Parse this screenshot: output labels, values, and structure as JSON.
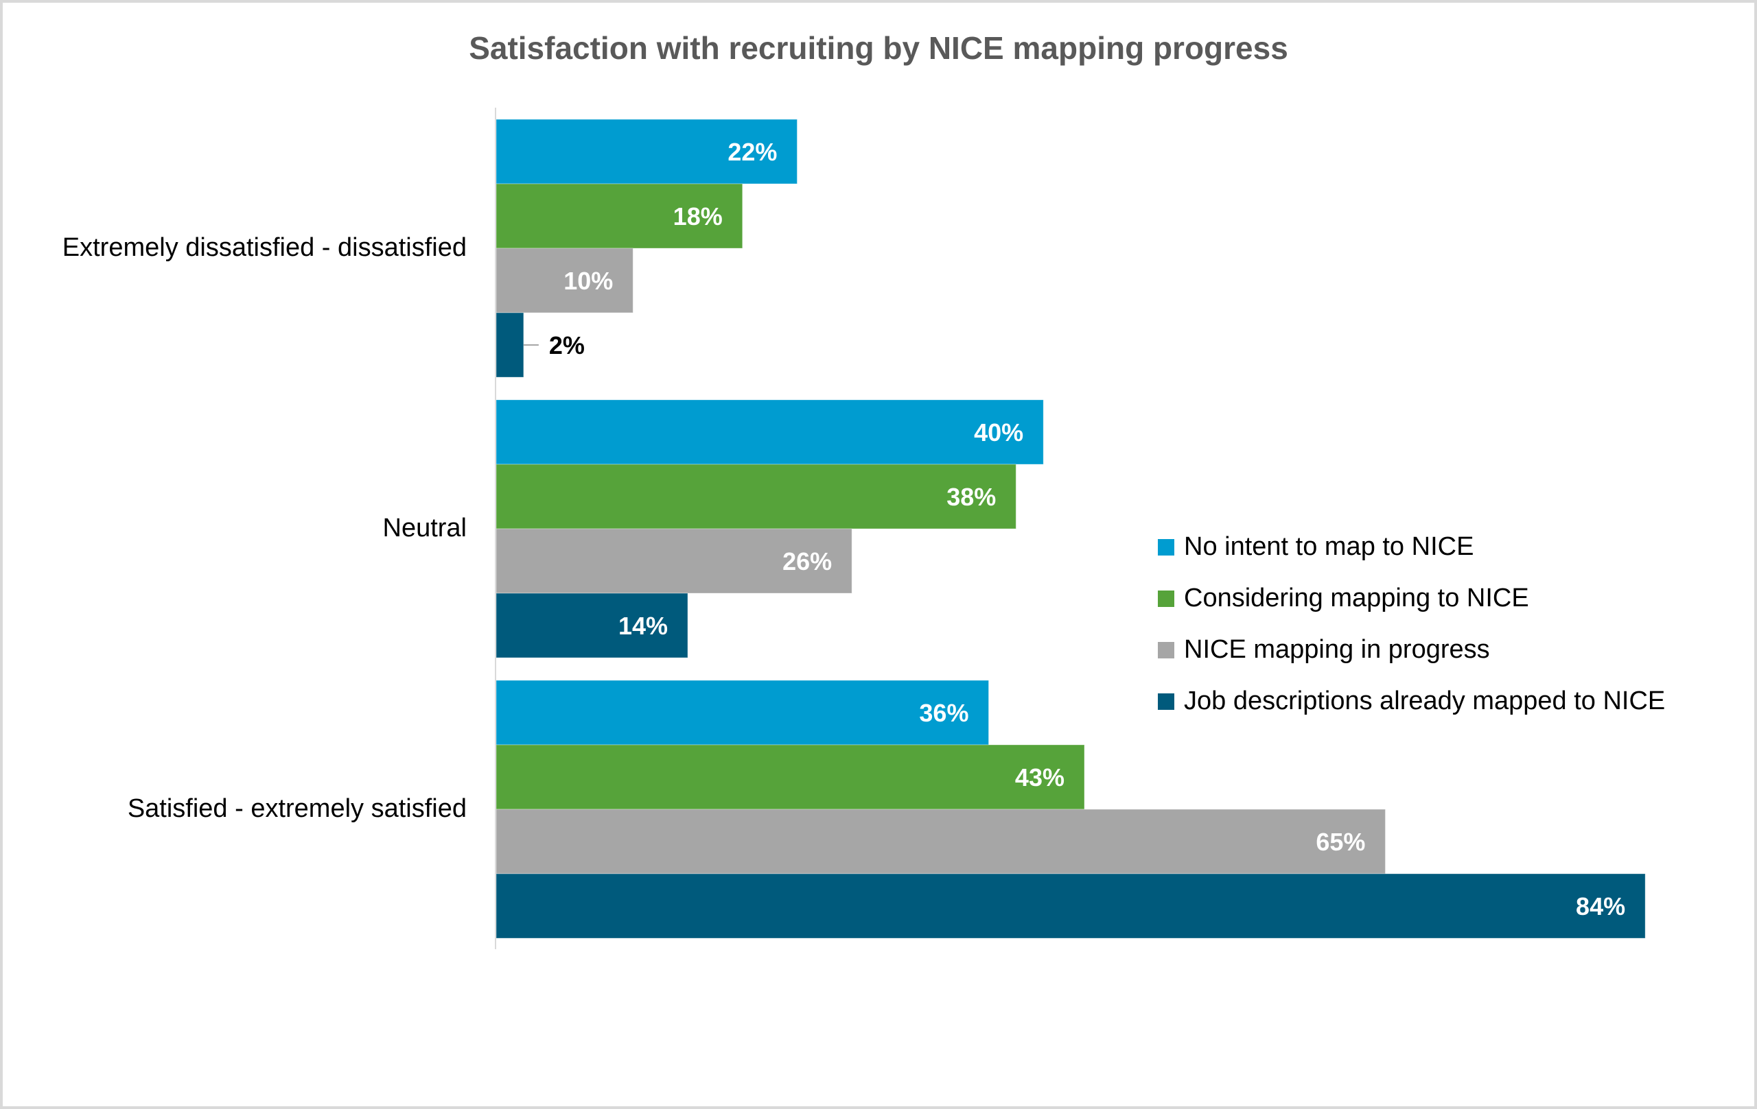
{
  "chart_data": {
    "type": "bar",
    "orientation": "horizontal",
    "title": "Satisfaction with recruiting by NICE mapping progress",
    "xlabel": "",
    "ylabel": "",
    "xlim": [
      0,
      84
    ],
    "grid": false,
    "value_format": "percent",
    "categories": [
      "Extremely dissatisfied - dissatisfied",
      "Neutral",
      "Satisfied - extremely satisfied"
    ],
    "series": [
      {
        "name": "No intent to map to NICE",
        "color": "#009CD0",
        "values": [
          22,
          40,
          36
        ]
      },
      {
        "name": "Considering mapping to NICE",
        "color": "#56A33A",
        "values": [
          18,
          38,
          43
        ]
      },
      {
        "name": "NICE mapping in progress",
        "color": "#A6A6A6",
        "values": [
          10,
          26,
          65
        ]
      },
      {
        "name": "Job descriptions already mapped to NICE",
        "color": "#005A7C",
        "values": [
          2,
          14,
          84
        ]
      }
    ],
    "data_labels": [
      [
        "22%",
        "40%",
        "36%"
      ],
      [
        "18%",
        "38%",
        "43%"
      ],
      [
        "10%",
        "26%",
        "65%"
      ],
      [
        "2%",
        "14%",
        "84%"
      ]
    ],
    "legend": {
      "position": "right"
    },
    "colors": {
      "title": "#595959",
      "axis": "#D9D9D9",
      "label_inside": "#FFFFFF",
      "label_outside": "#000000",
      "leader_line": "#A6A6A6"
    }
  }
}
